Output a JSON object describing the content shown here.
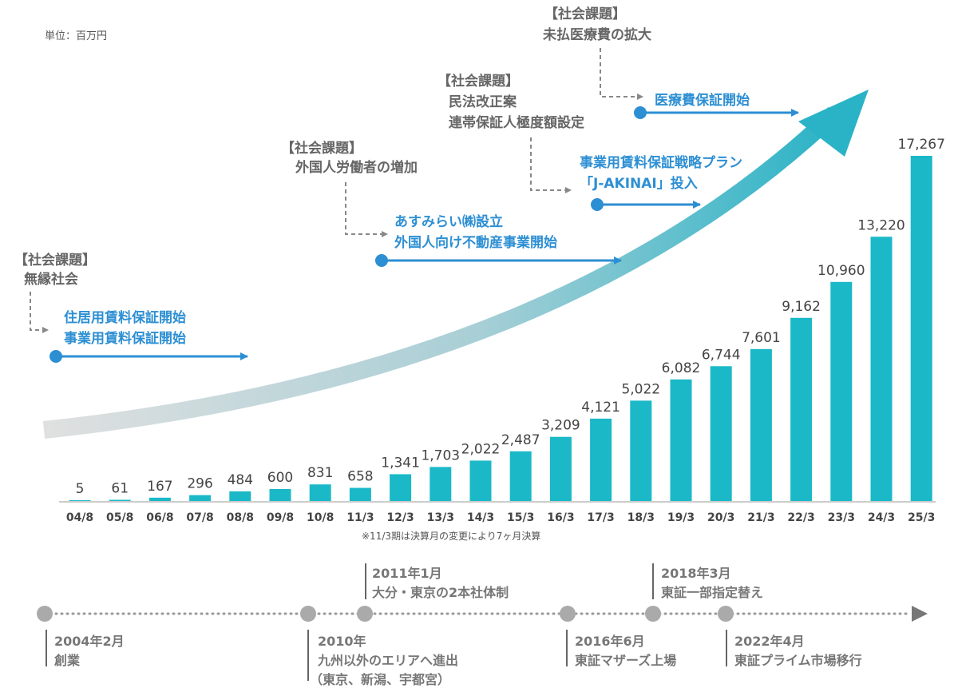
{
  "unit_label": "単位：百万円",
  "colors": {
    "bar": "#1bb8c8",
    "annotation_blue": "#2d8fd3",
    "annotation_gray": "#666666",
    "timeline": "#aaaaaa"
  },
  "chart_data": {
    "type": "bar",
    "categories": [
      "04/8",
      "05/8",
      "06/8",
      "07/8",
      "08/8",
      "09/8",
      "10/8",
      "11/3",
      "12/3",
      "13/3",
      "14/3",
      "15/3",
      "16/3",
      "17/3",
      "18/3",
      "19/3",
      "20/3",
      "21/3",
      "22/3",
      "23/3",
      "24/3",
      "25/3"
    ],
    "values": [
      5,
      61,
      167,
      296,
      484,
      600,
      831,
      658,
      1341,
      1703,
      2022,
      2487,
      3209,
      4121,
      5022,
      6082,
      6744,
      7601,
      9162,
      10960,
      13220,
      17267
    ],
    "value_labels": [
      "5",
      "61",
      "167",
      "296",
      "484",
      "600",
      "831",
      "658",
      "1,341",
      "1,703",
      "2,022",
      "2,487",
      "3,209",
      "4,121",
      "5,022",
      "6,082",
      "6,744",
      "7,601",
      "9,162",
      "10,960",
      "13,220",
      "17,267"
    ],
    "ylim": [
      0,
      18000
    ],
    "grid": false,
    "note": "※11/3期は決算月の変更により7ヶ月決算"
  },
  "annotations": {
    "a1": {
      "tag": "【社会課題】",
      "issue": "無縁社会",
      "action1": "住居用賃料保証開始",
      "action2": "事業用賃料保証開始"
    },
    "a2": {
      "tag": "【社会課題】",
      "issue": "外国人労働者の増加",
      "action1": "あすみらい㈱設立",
      "action2": "外国人向け不動産事業開始"
    },
    "a3": {
      "tag": "【社会課題】",
      "issue1": "民法改正案",
      "issue2": "連帯保証人極度額設定",
      "action1": "事業用賃料保証戦略プラン",
      "action2": "「J-AKINAI」投入"
    },
    "a4": {
      "tag": "【社会課題】",
      "issue": "未払医療費の拡大",
      "action1": "医療費保証開始"
    }
  },
  "timeline": {
    "e1": {
      "date": "2004年2月",
      "text": "創業"
    },
    "e2": {
      "date": "2010年",
      "text": "九州以外のエリアへ進出",
      "text2": "（東京、新潟、宇都宮）"
    },
    "e3": {
      "date": "2011年1月",
      "text": "大分・東京の2本社体制"
    },
    "e4": {
      "date": "2016年6月",
      "text": "東証マザーズ上場"
    },
    "e5": {
      "date": "2018年3月",
      "text": "東証一部指定替え"
    },
    "e6": {
      "date": "2022年4月",
      "text": "東証プライム市場移行"
    }
  }
}
